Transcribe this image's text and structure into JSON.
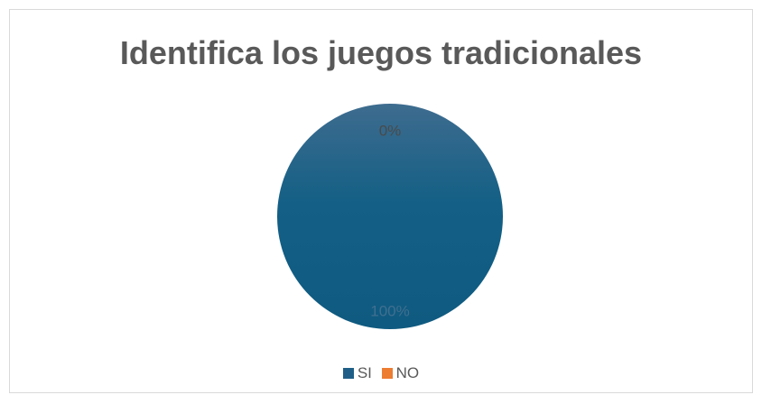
{
  "chart_data": {
    "type": "pie",
    "title": "Identifica los juegos tradicionales",
    "categories": [
      "SI",
      "NO"
    ],
    "values": [
      100,
      0
    ],
    "data_labels": [
      "100%",
      "0%"
    ],
    "colors": [
      "#1f5f87",
      "#ed7d31"
    ],
    "legend_position": "bottom"
  }
}
